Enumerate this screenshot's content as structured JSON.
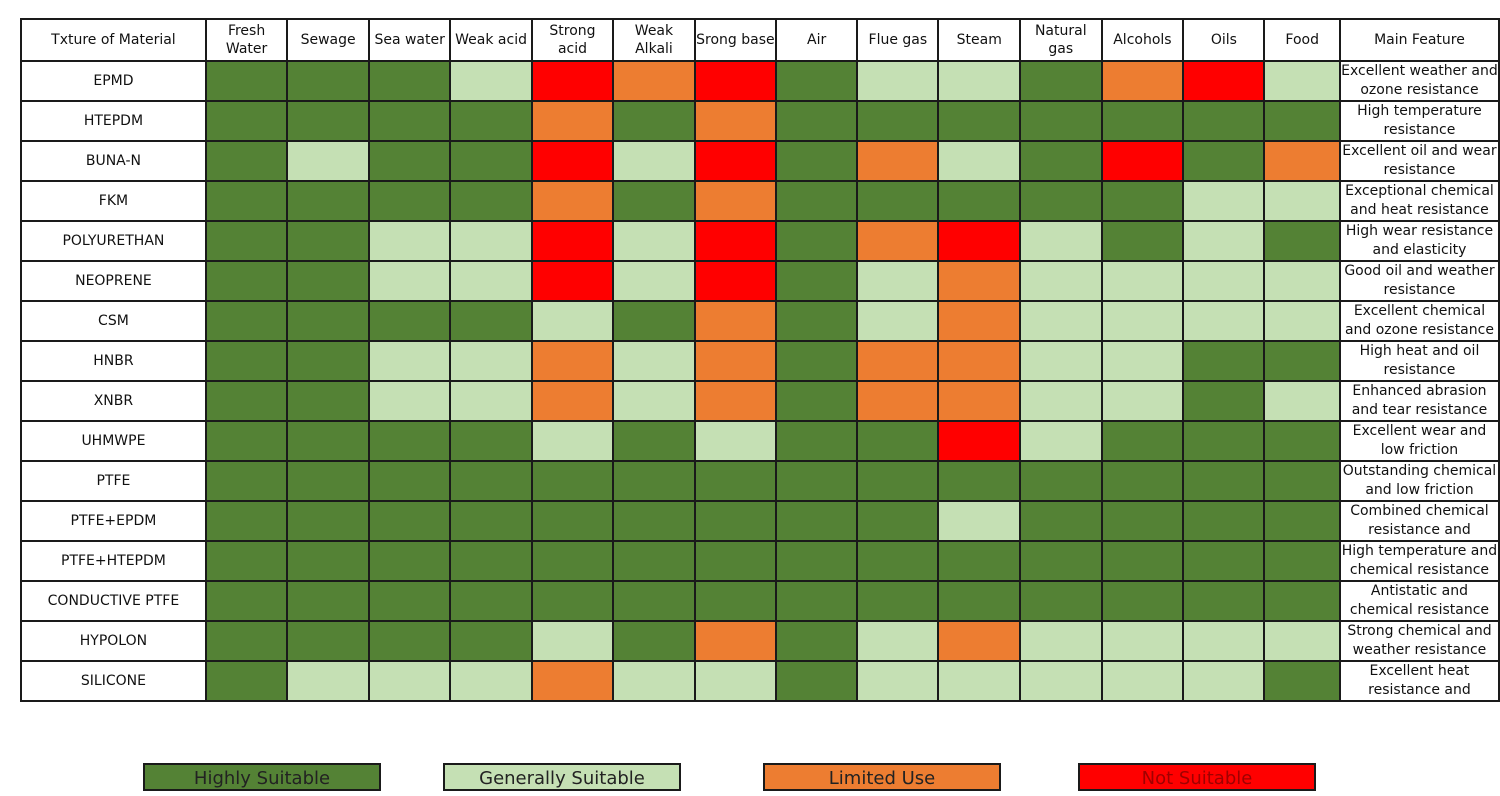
{
  "chart_data": {
    "type": "heatmap",
    "row_header": "Txture of Material",
    "feature_header": "Main Feature",
    "columns": [
      "Fresh Water",
      "Sewage",
      "Sea water",
      "Weak acid",
      "Strong acid",
      "Weak Alkali",
      "Srong base",
      "Air",
      "Flue gas",
      "Steam",
      "Natural gas",
      "Alcohols",
      "Oils",
      "Food"
    ],
    "rows": [
      {
        "material": "EPMD",
        "feature": "Excellent weather and ozone resistance",
        "ratings": [
          "H",
          "H",
          "H",
          "G",
          "N",
          "L",
          "N",
          "H",
          "G",
          "G",
          "H",
          "L",
          "N",
          "G"
        ]
      },
      {
        "material": "HTEPDM",
        "feature": "High temperature resistance",
        "ratings": [
          "H",
          "H",
          "H",
          "H",
          "L",
          "H",
          "L",
          "H",
          "H",
          "H",
          "H",
          "H",
          "H",
          "H"
        ]
      },
      {
        "material": "BUNA-N",
        "feature": "Excellent oil and wear resistance",
        "ratings": [
          "H",
          "G",
          "H",
          "H",
          "N",
          "G",
          "N",
          "H",
          "L",
          "G",
          "H",
          "N",
          "H",
          "L"
        ]
      },
      {
        "material": "FKM",
        "feature": "Exceptional chemical and heat resistance",
        "ratings": [
          "H",
          "H",
          "H",
          "H",
          "L",
          "H",
          "L",
          "H",
          "H",
          "H",
          "H",
          "H",
          "G",
          "G"
        ]
      },
      {
        "material": "POLYURETHAN",
        "feature": "High wear resistance and elasticity",
        "ratings": [
          "H",
          "H",
          "G",
          "G",
          "N",
          "G",
          "N",
          "H",
          "L",
          "N",
          "G",
          "H",
          "G",
          "H"
        ]
      },
      {
        "material": "NEOPRENE",
        "feature": "Good oil and weather resistance",
        "ratings": [
          "H",
          "H",
          "G",
          "G",
          "N",
          "G",
          "N",
          "H",
          "G",
          "L",
          "G",
          "G",
          "G",
          "G"
        ]
      },
      {
        "material": "CSM",
        "feature": "Excellent chemical and ozone resistance",
        "ratings": [
          "H",
          "H",
          "H",
          "H",
          "G",
          "H",
          "L",
          "H",
          "G",
          "L",
          "G",
          "G",
          "G",
          "G"
        ]
      },
      {
        "material": "HNBR",
        "feature": "High heat and oil resistance",
        "ratings": [
          "H",
          "H",
          "G",
          "G",
          "L",
          "G",
          "L",
          "H",
          "L",
          "L",
          "G",
          "G",
          "H",
          "H"
        ]
      },
      {
        "material": "XNBR",
        "feature": "Enhanced abrasion and tear resistance",
        "ratings": [
          "H",
          "H",
          "G",
          "G",
          "L",
          "G",
          "L",
          "H",
          "L",
          "L",
          "G",
          "G",
          "H",
          "G"
        ]
      },
      {
        "material": "UHMWPE",
        "feature": "Excellent wear and low friction",
        "ratings": [
          "H",
          "H",
          "H",
          "H",
          "G",
          "H",
          "G",
          "H",
          "H",
          "N",
          "G",
          "H",
          "H",
          "H"
        ]
      },
      {
        "material": "PTFE",
        "feature": "Outstanding chemical and low friction",
        "ratings": [
          "H",
          "H",
          "H",
          "H",
          "H",
          "H",
          "H",
          "H",
          "H",
          "H",
          "H",
          "H",
          "H",
          "H"
        ]
      },
      {
        "material": "PTFE+EPDM",
        "feature": "Combined chemical resistance and",
        "ratings": [
          "H",
          "H",
          "H",
          "H",
          "H",
          "H",
          "H",
          "H",
          "H",
          "G",
          "H",
          "H",
          "H",
          "H"
        ]
      },
      {
        "material": "PTFE+HTEPDM",
        "feature": "High temperature and chemical resistance",
        "ratings": [
          "H",
          "H",
          "H",
          "H",
          "H",
          "H",
          "H",
          "H",
          "H",
          "H",
          "H",
          "H",
          "H",
          "H"
        ]
      },
      {
        "material": "CONDUCTIVE PTFE",
        "feature": "Antistatic and chemical resistance",
        "ratings": [
          "H",
          "H",
          "H",
          "H",
          "H",
          "H",
          "H",
          "H",
          "H",
          "H",
          "H",
          "H",
          "H",
          "H"
        ]
      },
      {
        "material": "HYPOLON",
        "feature": "Strong chemical and weather resistance",
        "ratings": [
          "H",
          "H",
          "H",
          "H",
          "G",
          "H",
          "L",
          "H",
          "G",
          "L",
          "G",
          "G",
          "G",
          "G"
        ]
      },
      {
        "material": "SILICONE",
        "feature": "Excellent heat resistance and",
        "ratings": [
          "H",
          "G",
          "G",
          "G",
          "L",
          "G",
          "G",
          "H",
          "G",
          "G",
          "G",
          "G",
          "G",
          "H"
        ]
      }
    ],
    "legend": [
      {
        "key": "H",
        "label": "Highly Suitable",
        "color": "#548235"
      },
      {
        "key": "G",
        "label": "Generally Suitable",
        "color": "#c5e0b4"
      },
      {
        "key": "L",
        "label": "Limited Use",
        "color": "#ed7d31"
      },
      {
        "key": "N",
        "label": "Not Suitable",
        "color": "#ff0000"
      }
    ]
  }
}
